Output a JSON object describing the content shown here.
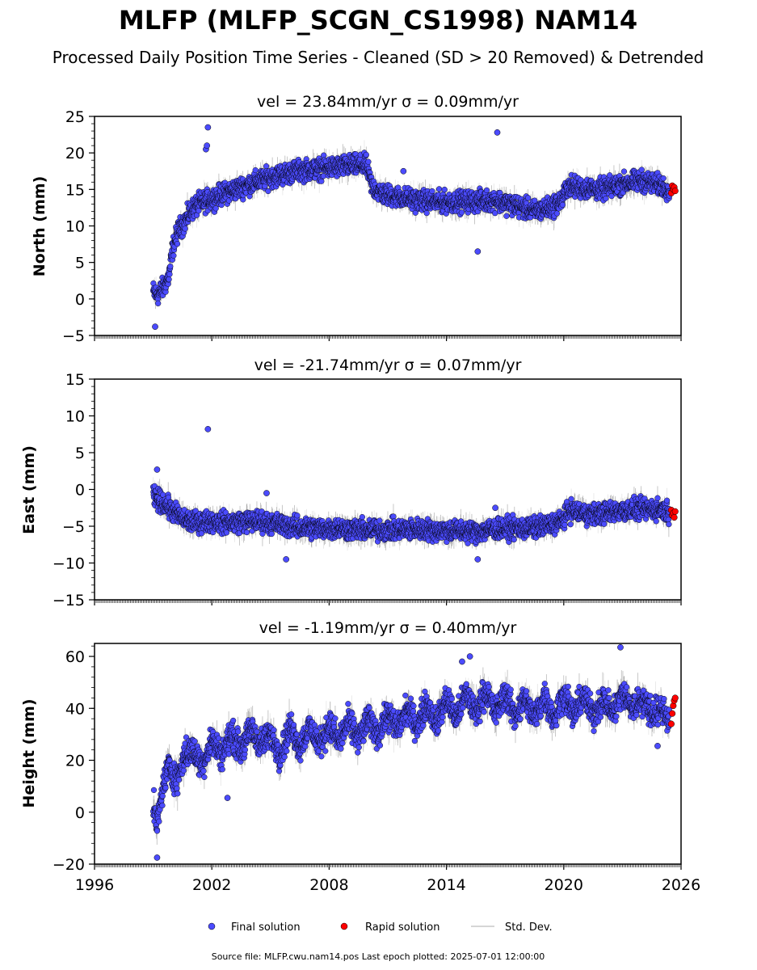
{
  "figure": {
    "title": "MLFP (MLFP_SCGN_CS1998) NAM14",
    "subtitle": "Processed Daily Position Time Series - Cleaned (SD > 20 Removed) & Detrended",
    "footer": "Source file: MLFP.cwu.nam14.pos  Last epoch plotted: 2025-07-01 12:00:00",
    "colors": {
      "final": "#4b4bff",
      "rapid": "#ff0000",
      "std": "#808080",
      "edge": "#000000"
    }
  },
  "legend": {
    "items": [
      {
        "label": "Final solution",
        "color": "#4b4bff",
        "kind": "marker"
      },
      {
        "label": "Rapid solution",
        "color": "#ff0000",
        "kind": "marker"
      },
      {
        "label": "Std. Dev.",
        "color": "#c8c8c8",
        "kind": "line"
      }
    ],
    "placement": "bottom-center"
  },
  "chart_data": [
    {
      "type": "scatter",
      "title": "vel = 23.84mm/yr   σ = 0.09mm/yr",
      "ylabel": "North (mm)",
      "xlim": [
        1996,
        2026
      ],
      "ylim": [
        -5,
        25
      ],
      "xticks": [
        1996,
        2002,
        2008,
        2014,
        2020,
        2026
      ],
      "yticks": [
        -5,
        0,
        5,
        10,
        15,
        20,
        25
      ],
      "x_tick_labels_shown": false,
      "series": [
        {
          "name": "Final solution",
          "x": [
            1999.0,
            1999.2,
            1999.5,
            1999.8,
            2000.0,
            2000.3,
            2000.6,
            2000.9,
            2001.3,
            2001.8,
            2002.5,
            2003.2,
            2004.0,
            2004.8,
            2005.5,
            2006.3,
            2007.0,
            2007.8,
            2008.5,
            2009.2,
            2009.9,
            2010.2,
            2010.8,
            2011.5,
            2012.5,
            2013.5,
            2014.5,
            2015.5,
            2016.5,
            2017.5,
            2018.5,
            2019.3,
            2019.9,
            2020.2,
            2021.0,
            2022.0,
            2023.0,
            2024.0,
            2025.0,
            2025.4
          ],
          "y": [
            1.0,
            0.5,
            1.5,
            3.0,
            7.0,
            9.5,
            10.5,
            12.0,
            13.0,
            13.5,
            14.3,
            15.0,
            15.8,
            16.5,
            17.0,
            17.5,
            17.7,
            17.9,
            18.1,
            18.3,
            18.3,
            15.3,
            14.3,
            14.0,
            13.5,
            13.3,
            13.3,
            13.4,
            13.5,
            12.8,
            12.0,
            12.5,
            13.5,
            15.5,
            15.2,
            15.0,
            15.8,
            16.2,
            15.5,
            15.0
          ]
        },
        {
          "name": "Rapid solution",
          "x": [
            2025.5,
            2025.55,
            2025.6,
            2025.65,
            2025.7
          ],
          "y": [
            14.5,
            15.5,
            15.0,
            15.3,
            14.8
          ]
        }
      ],
      "outliers": {
        "x": [
          2001.8,
          2001.7,
          2001.75,
          2016.6,
          2015.6,
          1999.1,
          2011.8
        ],
        "y": [
          23.5,
          20.5,
          21.0,
          22.8,
          6.5,
          -3.8,
          17.5
        ]
      }
    },
    {
      "type": "scatter",
      "title": "vel = -21.74mm/yr   σ = 0.07mm/yr",
      "ylabel": "East (mm)",
      "xlim": [
        1996,
        2026
      ],
      "ylim": [
        -15,
        15
      ],
      "xticks": [
        1996,
        2002,
        2008,
        2014,
        2020,
        2026
      ],
      "yticks": [
        -15,
        -10,
        -5,
        0,
        5,
        10,
        15
      ],
      "x_tick_labels_shown": false,
      "series": [
        {
          "name": "Final solution",
          "x": [
            1999.0,
            1999.3,
            1999.6,
            2000.0,
            2000.5,
            2001.0,
            2001.8,
            2002.5,
            2003.5,
            2004.5,
            2005.5,
            2006.5,
            2007.5,
            2008.5,
            2009.5,
            2010.5,
            2011.5,
            2012.5,
            2013.5,
            2014.5,
            2015.5,
            2016.5,
            2017.5,
            2018.5,
            2019.3,
            2019.9,
            2020.3,
            2021.0,
            2022.0,
            2023.0,
            2024.0,
            2025.0,
            2025.4
          ],
          "y": [
            -1.0,
            -1.5,
            -2.0,
            -3.0,
            -4.0,
            -4.5,
            -4.3,
            -4.5,
            -4.4,
            -4.3,
            -4.8,
            -5.2,
            -5.3,
            -5.3,
            -5.5,
            -5.5,
            -5.5,
            -5.4,
            -5.6,
            -5.6,
            -5.8,
            -5.4,
            -5.3,
            -5.2,
            -4.8,
            -4.3,
            -2.8,
            -3.3,
            -3.3,
            -2.8,
            -2.7,
            -2.7,
            -3.0
          ]
        },
        {
          "name": "Rapid solution",
          "x": [
            2025.5,
            2025.55,
            2025.6,
            2025.65,
            2025.7
          ],
          "y": [
            -2.8,
            -3.5,
            -3.2,
            -3.8,
            -3.0
          ]
        }
      ],
      "outliers": {
        "x": [
          2001.8,
          1999.2,
          2005.8,
          2004.8,
          2015.6,
          2016.5
        ],
        "y": [
          8.2,
          2.7,
          -9.5,
          -0.5,
          -9.5,
          -2.5
        ]
      }
    },
    {
      "type": "scatter",
      "title": "vel = -1.19mm/yr   σ = 0.40mm/yr",
      "ylabel": "Height (mm)",
      "xlim": [
        1996,
        2026
      ],
      "ylim": [
        -20,
        65
      ],
      "xticks": [
        1996,
        2002,
        2008,
        2014,
        2020,
        2026
      ],
      "yticks": [
        -20,
        0,
        20,
        40,
        60
      ],
      "x_tick_labels_shown": true,
      "series": [
        {
          "name": "Final solution",
          "x": [
            1999.0,
            1999.2,
            1999.5,
            1999.8,
            2000.2,
            2000.6,
            2001.0,
            2001.5,
            2002.0,
            2002.5,
            2003.0,
            2003.5,
            2004.0,
            2004.5,
            2005.0,
            2005.5,
            2006.0,
            2006.5,
            2007.0,
            2007.5,
            2008.0,
            2008.5,
            2009.0,
            2009.5,
            2010.0,
            2010.5,
            2011.0,
            2011.5,
            2012.0,
            2012.5,
            2013.0,
            2013.5,
            2014.0,
            2014.5,
            2015.0,
            2015.5,
            2016.0,
            2016.5,
            2017.0,
            2017.5,
            2018.0,
            2018.5,
            2019.0,
            2019.5,
            2020.0,
            2020.5,
            2021.0,
            2021.5,
            2022.0,
            2022.5,
            2023.0,
            2023.5,
            2024.0,
            2024.5,
            2025.0,
            2025.4
          ],
          "y": [
            2,
            -5,
            10,
            18,
            12,
            22,
            24,
            18,
            28,
            22,
            30,
            24,
            32,
            26,
            30,
            22,
            33,
            25,
            33,
            26,
            34,
            27,
            35,
            28,
            36,
            30,
            38,
            32,
            40,
            33,
            42,
            34,
            44,
            36,
            46,
            38,
            47,
            38,
            46,
            37,
            44,
            36,
            45,
            36,
            46,
            37,
            45,
            37,
            44,
            38,
            46,
            40,
            44,
            38,
            40,
            36
          ]
        },
        {
          "name": "Rapid solution",
          "x": [
            2025.5,
            2025.55,
            2025.6,
            2025.65,
            2025.7
          ],
          "y": [
            34,
            38,
            41,
            43,
            44
          ]
        }
      ],
      "outliers": {
        "x": [
          1999.2,
          2022.9,
          2015.2,
          2014.8,
          2002.8,
          2024.8
        ],
        "y": [
          -17.5,
          63.5,
          60.0,
          58.0,
          5.5,
          25.5
        ]
      }
    }
  ]
}
